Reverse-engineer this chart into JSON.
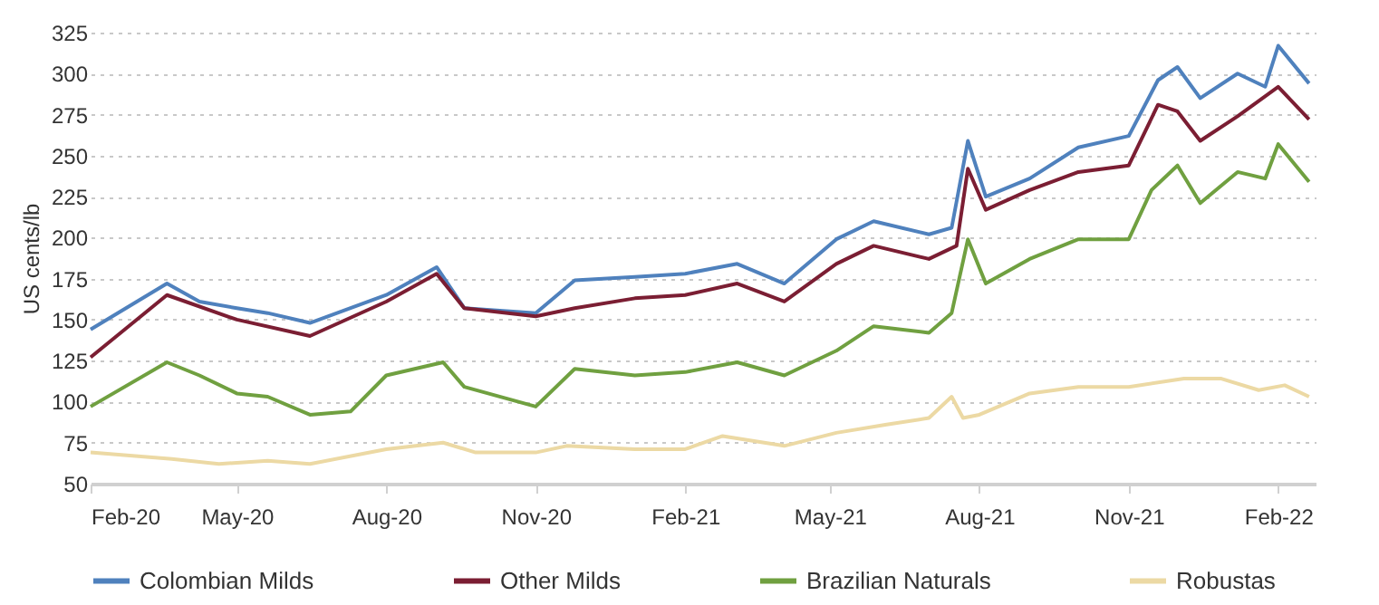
{
  "chart_data": {
    "type": "line",
    "ylabel": "US cents/lb",
    "xlim": [
      "2020-02-01",
      "2022-02-24"
    ],
    "xticks": [
      {
        "value": "2020-02-01",
        "label": "Feb-20"
      },
      {
        "value": "2020-05-01",
        "label": "May-20"
      },
      {
        "value": "2020-08-01",
        "label": "Aug-20"
      },
      {
        "value": "2020-11-01",
        "label": "Nov-20"
      },
      {
        "value": "2021-02-01",
        "label": "Feb-21"
      },
      {
        "value": "2021-05-01",
        "label": "May-21"
      },
      {
        "value": "2021-08-01",
        "label": "Aug-21"
      },
      {
        "value": "2021-11-01",
        "label": "Nov-21"
      },
      {
        "value": "2022-02-01",
        "label": "Feb-22"
      }
    ],
    "ylim": [
      50,
      325
    ],
    "yticks": [
      50,
      75,
      100,
      125,
      150,
      175,
      200,
      225,
      250,
      275,
      300,
      325
    ],
    "grid": "y",
    "legend": "bottom",
    "line_style": "solid",
    "marker": "none",
    "series": [
      {
        "name": "Colombian Milds",
        "color": "#4f81bd",
        "x": [
          "2020-02-01",
          "2020-03-19",
          "2020-04-08",
          "2020-05-01",
          "2020-05-20",
          "2020-06-15",
          "2020-08-01",
          "2020-09-01",
          "2020-09-18",
          "2020-11-01",
          "2020-11-25",
          "2021-01-01",
          "2021-02-01",
          "2021-03-05",
          "2021-04-03",
          "2021-05-05",
          "2021-05-28",
          "2021-07-01",
          "2021-07-15",
          "2021-07-25",
          "2021-08-05",
          "2021-09-01",
          "2021-10-01",
          "2021-11-01",
          "2021-11-19",
          "2021-12-01",
          "2021-12-15",
          "2022-01-07",
          "2022-01-24",
          "2022-02-01",
          "2022-02-20"
        ],
        "values": [
          144,
          172,
          161,
          157,
          154,
          148,
          165,
          182,
          157,
          154,
          174,
          176,
          178,
          184,
          172,
          199,
          210,
          202,
          206,
          259,
          225,
          236,
          255,
          262,
          296,
          304,
          285,
          300,
          292,
          317,
          294
        ]
      },
      {
        "name": "Other Milds",
        "color": "#7b1e33",
        "x": [
          "2020-02-01",
          "2020-03-19",
          "2020-05-01",
          "2020-06-15",
          "2020-08-01",
          "2020-09-01",
          "2020-09-18",
          "2020-11-01",
          "2020-11-25",
          "2021-01-01",
          "2021-02-01",
          "2021-03-05",
          "2021-04-03",
          "2021-05-05",
          "2021-05-28",
          "2021-07-01",
          "2021-07-18",
          "2021-07-25",
          "2021-08-05",
          "2021-09-01",
          "2021-10-01",
          "2021-11-01",
          "2021-11-19",
          "2021-12-01",
          "2021-12-15",
          "2022-01-07",
          "2022-02-01",
          "2022-02-20"
        ],
        "values": [
          127,
          165,
          150,
          140,
          161,
          178,
          157,
          152,
          157,
          163,
          165,
          172,
          161,
          184,
          195,
          187,
          195,
          242,
          217,
          229,
          240,
          244,
          281,
          277,
          259,
          274,
          292,
          272
        ]
      },
      {
        "name": "Brazilian Naturals",
        "color": "#70a040",
        "x": [
          "2020-02-01",
          "2020-03-19",
          "2020-04-08",
          "2020-05-01",
          "2020-05-20",
          "2020-06-15",
          "2020-07-10",
          "2020-08-01",
          "2020-09-05",
          "2020-09-18",
          "2020-11-01",
          "2020-11-25",
          "2021-01-01",
          "2021-02-01",
          "2021-03-05",
          "2021-04-03",
          "2021-05-05",
          "2021-05-28",
          "2021-07-01",
          "2021-07-15",
          "2021-07-25",
          "2021-08-05",
          "2021-09-01",
          "2021-10-01",
          "2021-11-01",
          "2021-11-15",
          "2021-12-01",
          "2021-12-15",
          "2022-01-07",
          "2022-01-24",
          "2022-02-01",
          "2022-02-20"
        ],
        "values": [
          97,
          124,
          116,
          105,
          103,
          92,
          94,
          116,
          124,
          109,
          97,
          120,
          116,
          118,
          124,
          116,
          131,
          146,
          142,
          154,
          199,
          172,
          187,
          199,
          199,
          229,
          244,
          221,
          240,
          236,
          257,
          234
        ]
      },
      {
        "name": "Robustas",
        "color": "#ecd9a4",
        "x": [
          "2020-02-01",
          "2020-03-22",
          "2020-04-20",
          "2020-05-20",
          "2020-06-15",
          "2020-08-01",
          "2020-09-05",
          "2020-09-25",
          "2020-11-01",
          "2020-11-20",
          "2021-01-01",
          "2021-02-01",
          "2021-02-24",
          "2021-04-03",
          "2021-05-05",
          "2021-06-05",
          "2021-07-01",
          "2021-07-15",
          "2021-07-22",
          "2021-08-01",
          "2021-09-01",
          "2021-10-01",
          "2021-11-01",
          "2021-12-05",
          "2021-12-28",
          "2022-01-20",
          "2022-02-05",
          "2022-02-20"
        ],
        "values": [
          69,
          65,
          62,
          64,
          62,
          71,
          75,
          69,
          69,
          73,
          71,
          71,
          79,
          73,
          81,
          86,
          90,
          103,
          90,
          92,
          105,
          109,
          109,
          114,
          114,
          107,
          110,
          103
        ]
      }
    ]
  }
}
